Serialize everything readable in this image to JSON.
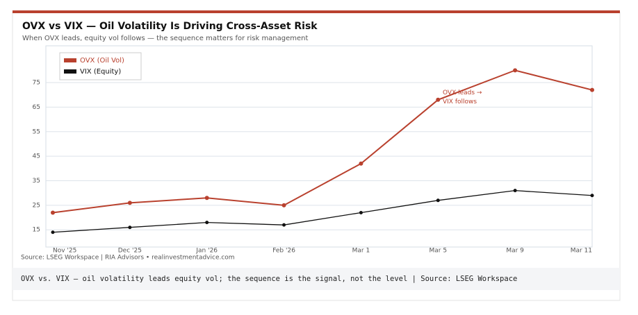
{
  "chart_data": {
    "type": "line",
    "title": "OVX vs VIX — Oil Volatility Is Driving Cross-Asset Risk",
    "subtitle": "When OVX leads, equity vol follows — the sequence matters for risk management",
    "categories": [
      "Nov '25",
      "Dec '25",
      "Jan '26",
      "Feb '26",
      "Mar 1",
      "Mar 5",
      "Mar 9",
      "Mar 11"
    ],
    "series": [
      {
        "name": "OVX (Oil Vol)",
        "color": "#b9412e",
        "values": [
          22,
          26,
          28,
          25,
          42,
          68,
          80,
          72
        ]
      },
      {
        "name": "VIX (Equity)",
        "color": "#111111",
        "values": [
          14,
          16,
          18,
          17,
          22,
          27,
          31,
          29
        ]
      }
    ],
    "ylim": [
      8,
      90
    ],
    "yticks": [
      15,
      25,
      35,
      45,
      55,
      65,
      75
    ],
    "grid": true,
    "legend": "top-left",
    "annotation": "OVX leads →\nVIX follows",
    "source": "Source: LSEG Workspace  |  RIA Advisors • realinvestmentadvice.com",
    "caption": "OVX vs. VIX — oil volatility leads equity vol; the sequence is the signal, not the level | Source: LSEG Workspace"
  }
}
